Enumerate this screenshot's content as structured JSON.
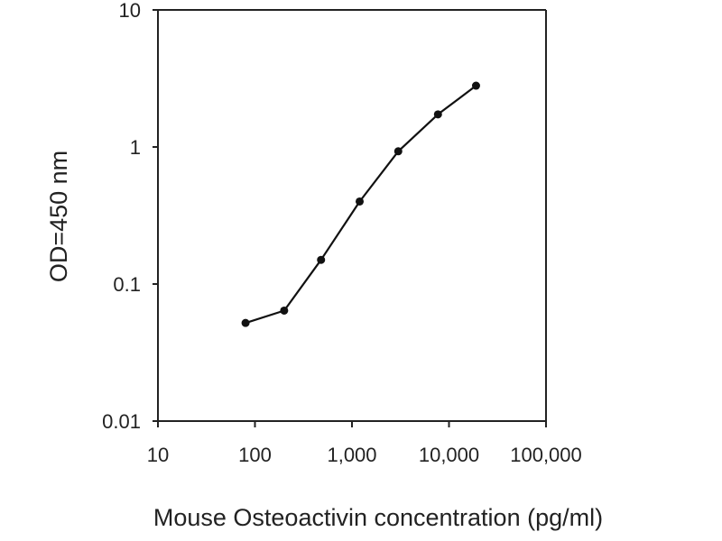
{
  "chart_data": {
    "type": "line",
    "title": "",
    "xlabel": "Mouse Osteoactivin concentration (pg/ml)",
    "ylabel": "OD=450 nm",
    "xscale": "log",
    "yscale": "log",
    "xlim": [
      10,
      100000
    ],
    "ylim": [
      0.01,
      10
    ],
    "x_ticks": [
      10,
      100,
      1000,
      10000,
      100000
    ],
    "x_tick_labels": [
      "10",
      "100",
      "1,000",
      "10,000",
      "100,000"
    ],
    "y_ticks": [
      0.01,
      0.1,
      1,
      10
    ],
    "y_tick_labels": [
      "0.01",
      "0.1",
      "1",
      "10"
    ],
    "grid": false,
    "legend": "none",
    "series": [
      {
        "name": "Mouse Osteoactivin",
        "color": "#111111",
        "x": [
          80,
          200,
          480,
          1200,
          3000,
          7700,
          19000
        ],
        "y": [
          0.052,
          0.064,
          0.15,
          0.4,
          0.93,
          1.73,
          2.8
        ]
      }
    ]
  }
}
